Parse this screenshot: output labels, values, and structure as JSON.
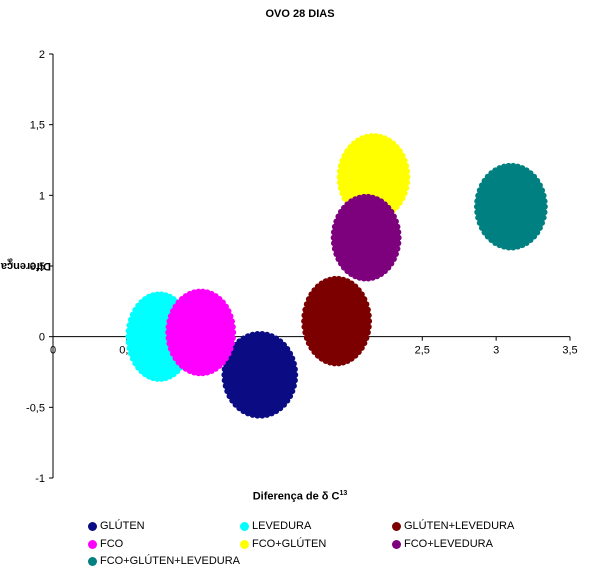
{
  "chart_data": {
    "type": "scatter",
    "title": "OVO 28 DIAS",
    "xlabel_main": "Diferença de δ C",
    "xlabel_sup": "13",
    "ylabel_main": "Diferença de δ N",
    "ylabel_sup": "16",
    "xlim": [
      0,
      3.5
    ],
    "ylim": [
      -1,
      2
    ],
    "x_ticks": [
      "0",
      "0,5",
      "1",
      "1,5",
      "2",
      "2,5",
      "3",
      "3,5"
    ],
    "y_ticks": [
      "-1",
      "-0,5",
      "0",
      "0,5",
      "1",
      "1,5",
      "2"
    ],
    "legend_position": "bottom",
    "series": [
      {
        "name": "GLÚTEN",
        "color": "#0b0b84",
        "x": 1.4,
        "y": -0.27,
        "rx": 0.25,
        "ry": 0.3
      },
      {
        "name": "LEVEDURA",
        "color": "#00ffff",
        "x": 0.72,
        "y": 0.0,
        "rx": 0.22,
        "ry": 0.31
      },
      {
        "name": "GLÚTEN+LEVEDURA",
        "color": "#7d0000",
        "x": 1.92,
        "y": 0.11,
        "rx": 0.23,
        "ry": 0.31
      },
      {
        "name": "FCO",
        "color": "#ff00ff",
        "x": 1.0,
        "y": 0.03,
        "rx": 0.23,
        "ry": 0.3
      },
      {
        "name": "FCO+GLÚTEN",
        "color": "#ffff00",
        "x": 2.17,
        "y": 1.13,
        "rx": 0.24,
        "ry": 0.3
      },
      {
        "name": "FCO+LEVEDURA",
        "color": "#7d007d",
        "x": 2.12,
        "y": 0.7,
        "rx": 0.23,
        "ry": 0.3
      },
      {
        "name": "FCO+GLÚTEN+LEVEDURA",
        "color": "#008080",
        "x": 3.1,
        "y": 0.92,
        "rx": 0.24,
        "ry": 0.3
      }
    ]
  }
}
